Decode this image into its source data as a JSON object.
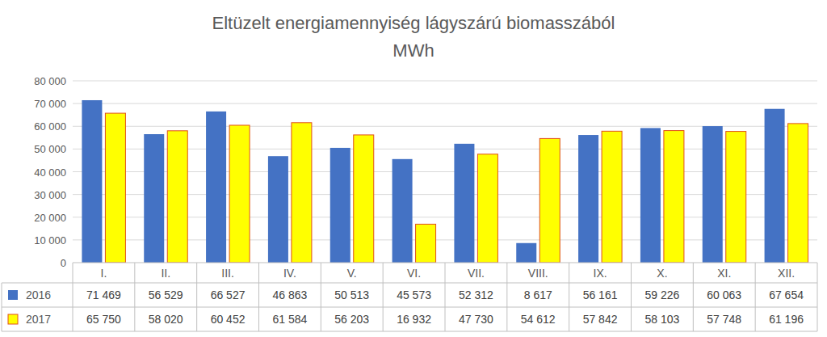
{
  "chart_data": {
    "type": "bar",
    "title": "Eltüzelt energiamennyiség lágyszárú biomasszából",
    "subtitle": "MWh",
    "categories": [
      "I.",
      "II.",
      "III.",
      "IV.",
      "V.",
      "VI.",
      "VII.",
      "VIII.",
      "IX.",
      "X.",
      "XI.",
      "XII."
    ],
    "series": [
      {
        "name": "2016",
        "color": "#4472c4",
        "values": [
          71469,
          56529,
          66527,
          46863,
          50513,
          45573,
          52312,
          8617,
          56161,
          59226,
          60063,
          67654
        ],
        "value_labels": [
          "71 469",
          "56 529",
          "66 527",
          "46 863",
          "50 513",
          "45 573",
          "52 312",
          "8 617",
          "56 161",
          "59 226",
          "60 063",
          "67 654"
        ]
      },
      {
        "name": "2017",
        "color": "#ffff00",
        "values": [
          65750,
          58020,
          60452,
          61584,
          56203,
          16932,
          47730,
          54612,
          57842,
          58103,
          57748,
          61196
        ],
        "value_labels": [
          "65 750",
          "58 020",
          "60 452",
          "61 584",
          "56 203",
          "16 932",
          "47 730",
          "54 612",
          "57 842",
          "58 103",
          "57 748",
          "61 196"
        ]
      }
    ],
    "ylim": [
      0,
      80000
    ],
    "yticks": [
      {
        "value": 0,
        "label": "0"
      },
      {
        "value": 10000,
        "label": "10 000"
      },
      {
        "value": 20000,
        "label": "20 000"
      },
      {
        "value": 30000,
        "label": "30 000"
      },
      {
        "value": 40000,
        "label": "40 000"
      },
      {
        "value": 50000,
        "label": "50 000"
      },
      {
        "value": 60000,
        "label": "60 000"
      },
      {
        "value": 70000,
        "label": "70 000"
      },
      {
        "value": 80000,
        "label": "80 000"
      }
    ],
    "grid": true
  }
}
